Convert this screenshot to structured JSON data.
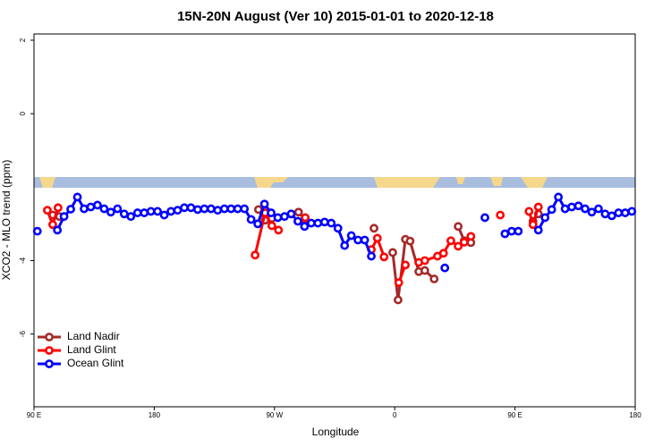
{
  "chart_data": {
    "type": "line",
    "title": "15N-20N August (Ver 10)   2015-01-01 to 2020-12-18",
    "x_label": "Longitude",
    "y_label": "XCO2 - MLO trend (ppm)",
    "xlim": [
      90,
      540
    ],
    "ylim": [
      -7.98,
      2.17
    ],
    "xticks": [
      {
        "value": 90,
        "label": "90 E"
      },
      180,
      {
        "value": 270,
        "label": "90 W"
      },
      {
        "value": 360,
        "label": "0"
      },
      {
        "value": 450,
        "label": "90 E"
      },
      {
        "value": 540,
        "label": "180"
      }
    ],
    "yticks": [
      2,
      0,
      -4,
      -6
    ],
    "legend": "bottom-left",
    "series": [
      {
        "name": "Land Nadir",
        "color": "#a52a2a",
        "x": [
          104,
          109,
          113,
          258,
          263,
          268,
          278,
          288,
          293,
          300,
          344.5,
          352,
          358.5,
          362.5,
          368,
          371.5,
          378,
          382.5,
          389.5,
          400,
          407.5,
          412,
          417,
          440,
          463.5,
          467.5
        ],
        "values": [
          -2.76,
          -2.8,
          null,
          -2.61,
          -2.9,
          -2.85,
          null,
          -2.68,
          -2.88,
          null,
          -3.12,
          null,
          -3.78,
          -5.07,
          -3.42,
          -3.47,
          -4.3,
          -4.27,
          -4.5,
          null,
          -3.07,
          -3.46,
          -3.51,
          null,
          -2.93,
          -2.73
        ]
      },
      {
        "name": "Land Glint",
        "color": "#ff0000",
        "x": [
          100,
          104,
          108,
          112,
          255.5,
          263,
          268,
          273,
          278,
          293,
          298,
          342.5,
          347,
          352,
          355,
          363,
          368,
          373,
          378,
          382.5,
          392,
          396.5,
          402,
          407.5,
          412,
          417,
          422,
          439,
          450,
          460.5,
          463.5,
          467.5
        ],
        "values": [
          -2.63,
          -3.02,
          -2.56,
          null,
          -3.85,
          -2.7,
          -3.05,
          -3.17,
          null,
          -2.83,
          null,
          -3.7,
          -3.39,
          -3.9,
          null,
          -4.6,
          -4.12,
          null,
          -4.05,
          -4.0,
          -3.88,
          -3.8,
          -3.46,
          -3.61,
          -3.5,
          -3.34,
          null,
          -2.76,
          null,
          -2.66,
          -3.02,
          -2.54
        ]
      },
      {
        "name": "Ocean Glint",
        "color": "#0000ff",
        "x": [
          92.5,
          97.5,
          107.5,
          112.5,
          117.5,
          122.5,
          127.5,
          132.5,
          137.5,
          142.5,
          147.5,
          152.5,
          157.5,
          162.5,
          167.5,
          172.5,
          177.5,
          182.5,
          187.5,
          192.5,
          197.5,
          202.5,
          207.5,
          212.5,
          217.5,
          222.5,
          227.5,
          232.5,
          237.5,
          242.5,
          247.5,
          252.5,
          257.5,
          262.5,
          267.5,
          272.5,
          277.5,
          282.5,
          287.5,
          292.5,
          297.5,
          302.5,
          307.5,
          312.5,
          317.5,
          322.5,
          327.5,
          332.5,
          337.5,
          342.5,
          347.5,
          397.5,
          402.5,
          427.5,
          432.5,
          442.5,
          447.5,
          452.5,
          457.5,
          467.5,
          472.5,
          477.5,
          482.5,
          487.5,
          492.5,
          497.5,
          502.5,
          507.5,
          512.5,
          517.5,
          522.5,
          527.5,
          532.5,
          537.5
        ],
        "values": [
          -3.2,
          null,
          -3.17,
          -2.8,
          -2.6,
          -2.27,
          -2.59,
          -2.54,
          -2.49,
          -2.59,
          -2.68,
          -2.59,
          -2.73,
          -2.8,
          -2.7,
          -2.7,
          -2.66,
          -2.66,
          -2.76,
          -2.66,
          -2.63,
          -2.56,
          -2.56,
          -2.61,
          -2.59,
          -2.59,
          -2.63,
          -2.59,
          -2.59,
          -2.59,
          -2.59,
          -2.88,
          -3.0,
          -2.46,
          -2.7,
          -2.83,
          -2.8,
          -2.73,
          -2.93,
          -3.07,
          -2.98,
          -2.98,
          -2.95,
          -2.98,
          -3.12,
          -3.59,
          -3.32,
          -3.44,
          -3.44,
          -3.88,
          null,
          -4.2,
          null,
          -2.83,
          null,
          -3.27,
          -3.2,
          -3.2,
          null,
          -3.17,
          -2.83,
          -2.61,
          -2.27,
          -2.59,
          -2.54,
          -2.51,
          -2.59,
          -2.68,
          -2.59,
          -2.73,
          -2.78,
          -2.7,
          -2.7,
          -2.66
        ]
      }
    ]
  }
}
